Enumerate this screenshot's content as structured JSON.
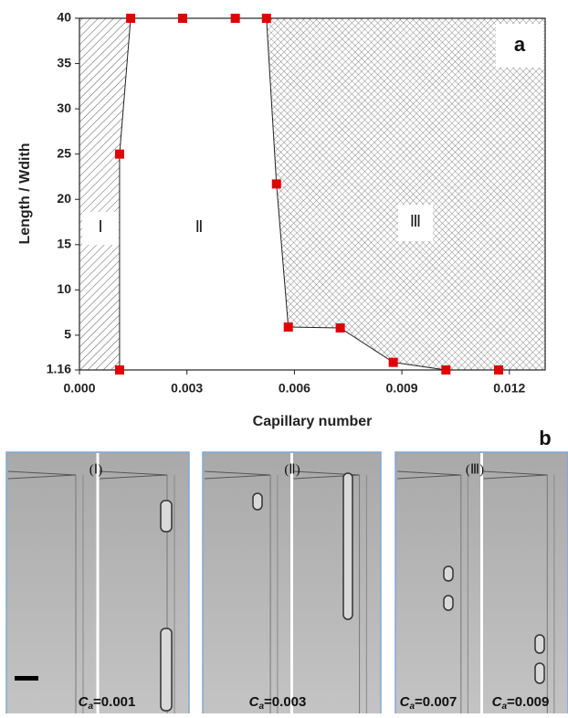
{
  "chart_data": {
    "type": "scatter",
    "xlabel": "Capillary number",
    "ylabel": "Length / Wdith",
    "x": [
      0.00112,
      0.00112,
      0.00143,
      0.00288,
      0.00435,
      0.00522,
      0.0055,
      0.00583,
      0.00728,
      0.00876,
      0.01023,
      0.0117
    ],
    "values": [
      1.16,
      25,
      40,
      40,
      40,
      40,
      21.7,
      5.9,
      5.8,
      2.0,
      1.16,
      1.16
    ],
    "color": "#e00000",
    "xlim": [
      0,
      0.013
    ],
    "ylim": [
      1.16,
      40
    ],
    "xticks": [
      {
        "value": 0,
        "label": "0.000"
      },
      {
        "value": 0.003,
        "label": "0.003"
      },
      {
        "value": 0.006,
        "label": "0.006"
      },
      {
        "value": 0.009,
        "label": "0.009"
      },
      {
        "value": 0.012,
        "label": "0.012"
      }
    ],
    "yticks": [
      1.16,
      5,
      10,
      15,
      20,
      25,
      30,
      35,
      40
    ],
    "regions": [
      "Ⅰ",
      "Ⅱ",
      "Ⅲ"
    ],
    "panel": "a"
  },
  "micrographs": {
    "panel": "b",
    "images": [
      {
        "label": "(Ⅰ)",
        "symbol": "C",
        "subscript": "a",
        "value": "=0.001"
      },
      {
        "label": "(Ⅱ)",
        "symbol": "C",
        "subscript": "a",
        "value": "=0.003"
      },
      {
        "label": "(Ⅲ)",
        "symbol": "C",
        "subscript": "a",
        "value": "=0.007"
      },
      {
        "label": "",
        "symbol": "C",
        "subscript": "a",
        "value": "=0.009"
      }
    ]
  }
}
